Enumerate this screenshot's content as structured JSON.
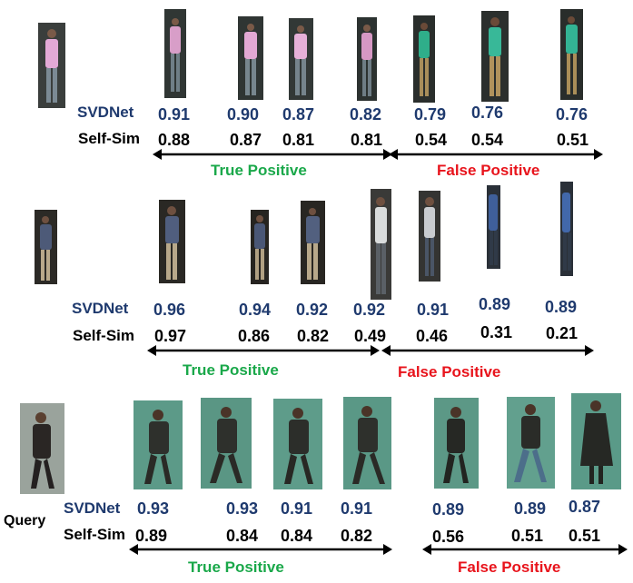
{
  "labels": {
    "svdnet": "SVDNet",
    "selfsim": "Self-Sim",
    "query": "Query"
  },
  "colors": {
    "svdnet_text": "#1f3a6e",
    "true_positive": "#1aa84a",
    "false_positive": "#e8141c"
  },
  "rows": [
    {
      "svdnet": [
        "0.91",
        "0.90",
        "0.87",
        "0.82",
        "0.79",
        "0.76",
        "0.76"
      ],
      "selfsim": [
        "0.88",
        "0.87",
        "0.81",
        "0.81",
        "0.54",
        "0.54",
        "0.51"
      ],
      "tp_label": "True Positive",
      "fp_label": "False Positive",
      "images": [
        {
          "name": "query",
          "icon": "person-pink-shirt"
        },
        {
          "name": "r1",
          "icon": "person-pink-shirt"
        },
        {
          "name": "r2",
          "icon": "person-pink-shirt"
        },
        {
          "name": "r3",
          "icon": "person-pink-shirt"
        },
        {
          "name": "r4",
          "icon": "person-pink-shirt"
        },
        {
          "name": "r5",
          "icon": "person-green-shirt"
        },
        {
          "name": "r6",
          "icon": "person-green-shirt"
        },
        {
          "name": "r7",
          "icon": "person-green-shirt"
        }
      ]
    },
    {
      "svdnet": [
        "0.96",
        "0.94",
        "0.92",
        "0.92",
        "0.91",
        "0.89",
        "0.89"
      ],
      "selfsim": [
        "0.97",
        "0.86",
        "0.82",
        "0.49",
        "0.46",
        "0.31",
        "0.21"
      ],
      "tp_label": "True Positive",
      "fp_label": "False Positive",
      "images": [
        {
          "name": "query",
          "icon": "person-blue-shirt"
        },
        {
          "name": "r1",
          "icon": "person-blue-shirt"
        },
        {
          "name": "r2",
          "icon": "person-blue-shirt"
        },
        {
          "name": "r3",
          "icon": "person-blue-shirt"
        },
        {
          "name": "r4",
          "icon": "person-white-shirt"
        },
        {
          "name": "r5",
          "icon": "person-white-shirt"
        },
        {
          "name": "r6",
          "icon": "person-blue-partial"
        },
        {
          "name": "r7",
          "icon": "person-blue-partial"
        }
      ]
    },
    {
      "svdnet": [
        "0.93",
        "0.93",
        "0.91",
        "0.91",
        "0.89",
        "0.89",
        "0.87"
      ],
      "selfsim": [
        "0.89",
        "0.84",
        "0.84",
        "0.82",
        "0.56",
        "0.51",
        "0.51"
      ],
      "tp_label": "True Positive",
      "fp_label": "False Positive",
      "images": [
        {
          "name": "query",
          "icon": "person-dark-coat"
        },
        {
          "name": "r1",
          "icon": "person-dark-coat-green"
        },
        {
          "name": "r2",
          "icon": "person-dark-coat-green"
        },
        {
          "name": "r3",
          "icon": "person-dark-coat-green"
        },
        {
          "name": "r4",
          "icon": "person-dark-coat-green"
        },
        {
          "name": "r5",
          "icon": "person-dark-coat-green"
        },
        {
          "name": "r6",
          "icon": "person-dark-coat-green"
        },
        {
          "name": "r7",
          "icon": "person-dark-coat-green"
        }
      ]
    }
  ]
}
